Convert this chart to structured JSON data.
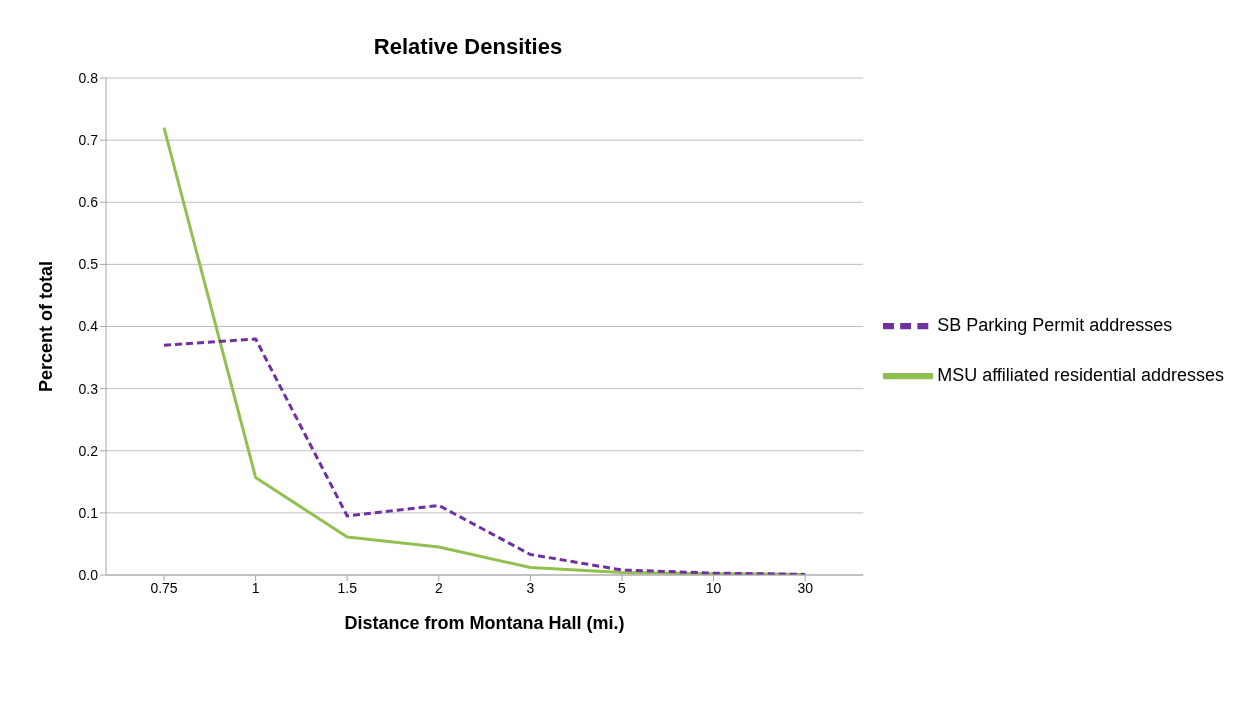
{
  "chart_data": {
    "type": "line",
    "title": "Relative Densities",
    "xlabel": "Distance from Montana Hall (mi.)",
    "ylabel": "Percent of total",
    "categories": [
      "0.75",
      "1",
      "1.5",
      "2",
      "3",
      "5",
      "10",
      "30"
    ],
    "series": [
      {
        "name": "SB Parking Permit addresses",
        "color": "#7030a0",
        "line_style": "dashed",
        "values": [
          0.37,
          0.38,
          0.095,
          0.112,
          0.033,
          0.008,
          0.003,
          0.001
        ]
      },
      {
        "name": "MSU affiliated residential addresses",
        "color": "#92c050",
        "line_style": "solid",
        "values": [
          0.72,
          0.157,
          0.061,
          0.045,
          0.012,
          0.004,
          0.002,
          0.001
        ]
      }
    ],
    "ylim": [
      0,
      0.8
    ],
    "yticks": [
      {
        "value": 0,
        "label": "0.0"
      },
      0.1,
      0.2,
      0.3,
      0.4,
      0.5,
      0.6,
      0.7,
      0.8
    ],
    "grid": "y",
    "legend": "right",
    "marker": "none"
  }
}
